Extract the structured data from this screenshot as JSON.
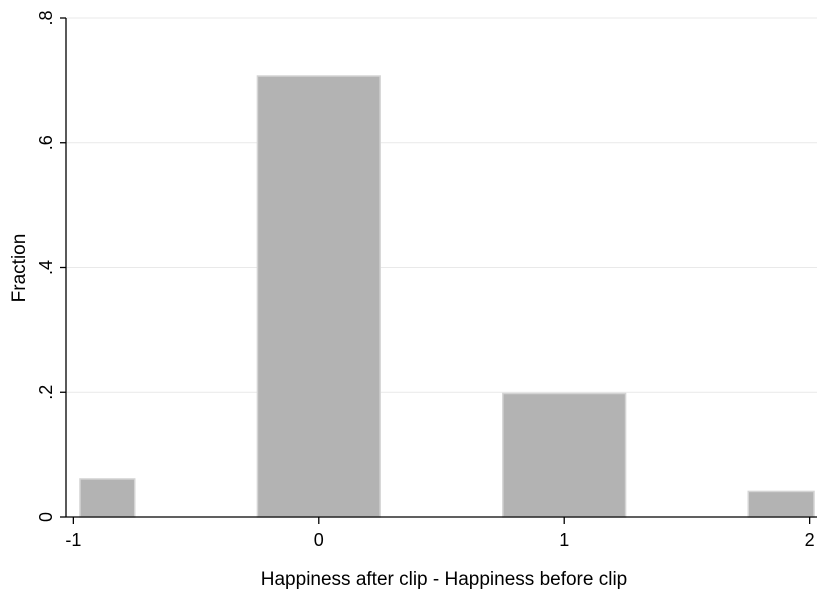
{
  "chart_data": {
    "type": "bar",
    "title": "",
    "xlabel": "Happiness after clip - Happiness before clip",
    "ylabel": "Fraction",
    "x": [
      -1,
      0,
      1,
      2
    ],
    "values": [
      0.061,
      0.707,
      0.198,
      0.041
    ],
    "bar_width": 0.5,
    "xlim": [
      -1.03,
      2.03
    ],
    "ylim": [
      0,
      0.8
    ],
    "xticks": [
      -1,
      0,
      1,
      2
    ],
    "xtick_labels": [
      "-1",
      "0",
      "1",
      "2"
    ],
    "yticks": [
      0,
      0.2,
      0.4,
      0.6,
      0.8
    ],
    "ytick_labels": [
      "0",
      ".2",
      ".4",
      ".6",
      ".8"
    ],
    "grid": true,
    "bar_color": "#b3b3b3",
    "bar_edge_color": "#d4d4d4",
    "grid_color": "#e9e9e9"
  }
}
